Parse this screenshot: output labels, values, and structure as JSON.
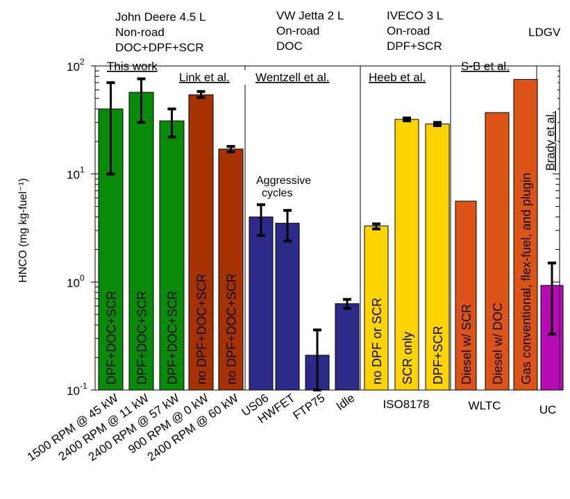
{
  "chart_data": {
    "type": "bar",
    "y_scale": "log",
    "ylim": [
      0.1,
      100
    ],
    "ylabel": "HNCO (mg kg-fuel⁻¹)",
    "yticks": [
      {
        "value": 100,
        "label": "10",
        "exp": "2"
      },
      {
        "value": 10,
        "label": "10",
        "exp": "1"
      },
      {
        "value": 1,
        "label": "10",
        "exp": "0"
      },
      {
        "value": 0.1,
        "label": "10",
        "exp": "-1"
      }
    ],
    "groups": [
      {
        "name": "This work",
        "color": "#0a7f0a",
        "engine": [
          "John Deere 4.5 L",
          "Non-road",
          "DOC+DPF+SCR"
        ]
      },
      {
        "name": "Link et al.",
        "color": "#a53200",
        "engine": []
      },
      {
        "name": "Wentzell et al.",
        "color": "#27238c",
        "engine": [
          "VW Jetta 2 L",
          "On-road",
          "DOC"
        ]
      },
      {
        "name": "Heeb et al.",
        "color": "#ffd400",
        "engine": [
          "IVECO 3 L",
          "On-road",
          "DPF+SCR"
        ]
      },
      {
        "name": "S-B et al.",
        "color": "#e0501b",
        "engine": []
      },
      {
        "name": "Brady et al.",
        "color": "#c217c2",
        "engine": [
          "LDGV"
        ]
      }
    ],
    "bars": [
      {
        "group": 0,
        "label": "DPF+DOC+SCR",
        "x_label": "1500 RPM @ 45 kW",
        "value": 40,
        "err": [
          10,
          70
        ],
        "color": "#0a8a0a"
      },
      {
        "group": 0,
        "label": "DPF+DOC+SCR",
        "x_label": "2400 RPM @ 11 kW",
        "value": 57,
        "err": [
          30,
          76
        ],
        "color": "#0a8a0a"
      },
      {
        "group": 0,
        "label": "DPF+DOC+SCR",
        "x_label": "2400 RPM @ 57 kW",
        "value": 31,
        "err": [
          22,
          40
        ],
        "color": "#0a8a0a"
      },
      {
        "group": 1,
        "label": "no DPF+DOC+SCR",
        "x_label": "900 RPM @ 0 kW",
        "value": 54,
        "err": [
          51,
          58
        ],
        "color": "#a53200"
      },
      {
        "group": 1,
        "label": "no DPF+DOC+SCR",
        "x_label": "2400 RPM @ 60 kW",
        "value": 17,
        "err": [
          16,
          18
        ],
        "color": "#a53200"
      },
      {
        "group": 2,
        "label": "",
        "x_label": "US06",
        "value": 4,
        "err": [
          2.7,
          5.2
        ],
        "color": "#2e2a8a"
      },
      {
        "group": 2,
        "label": "",
        "x_label": "HWFET",
        "value": 3.5,
        "err": [
          2.4,
          4.6
        ],
        "color": "#2e2a8a"
      },
      {
        "group": 2,
        "label": "",
        "x_label": "FTP75",
        "value": 0.21,
        "err": [
          0.1,
          0.36
        ],
        "color": "#2e2a8a"
      },
      {
        "group": 2,
        "label": "",
        "x_label": "Idle",
        "value": 0.63,
        "err": [
          0.57,
          0.69
        ],
        "color": "#2e2a8a"
      },
      {
        "group": 3,
        "label": "no DPF or SCR",
        "x_label": "",
        "value": 3.3,
        "err": [
          3.1,
          3.45
        ],
        "color": "#ffd400"
      },
      {
        "group": 3,
        "label": "SCR only",
        "x_label": "",
        "value": 32,
        "err": [
          31,
          33
        ],
        "color": "#ffd400"
      },
      {
        "group": 3,
        "label": "DPF+SCR",
        "x_label": "",
        "value": 29,
        "err": [
          28,
          30
        ],
        "color": "#ffd400"
      },
      {
        "group": 4,
        "label": "Diesel w/ SCR",
        "x_label": "",
        "value": 5.6,
        "err": null,
        "color": "#dd5418"
      },
      {
        "group": 4,
        "label": "Diesel w/ DOC",
        "x_label": "",
        "value": 37,
        "err": null,
        "color": "#dd5418"
      },
      {
        "group": 4,
        "label": "Gas conventional, flex-fuel, and plugin",
        "x_label": "",
        "value": 75,
        "err": null,
        "color": "#dd5418"
      },
      {
        "group": 5,
        "label": "",
        "x_label": "",
        "value": 0.93,
        "err": [
          0.33,
          1.5
        ],
        "color": "#b80bb8"
      }
    ],
    "cycle_labels": [
      {
        "text": "ISO8178",
        "group": 3
      },
      {
        "text": "WLTC",
        "group": 4
      },
      {
        "text": "UC",
        "group": 5
      }
    ],
    "annotations": [
      {
        "text": "Aggressive",
        "line": 1
      },
      {
        "text": "cycles",
        "line": 2
      }
    ],
    "legend": "none",
    "grid": false
  }
}
